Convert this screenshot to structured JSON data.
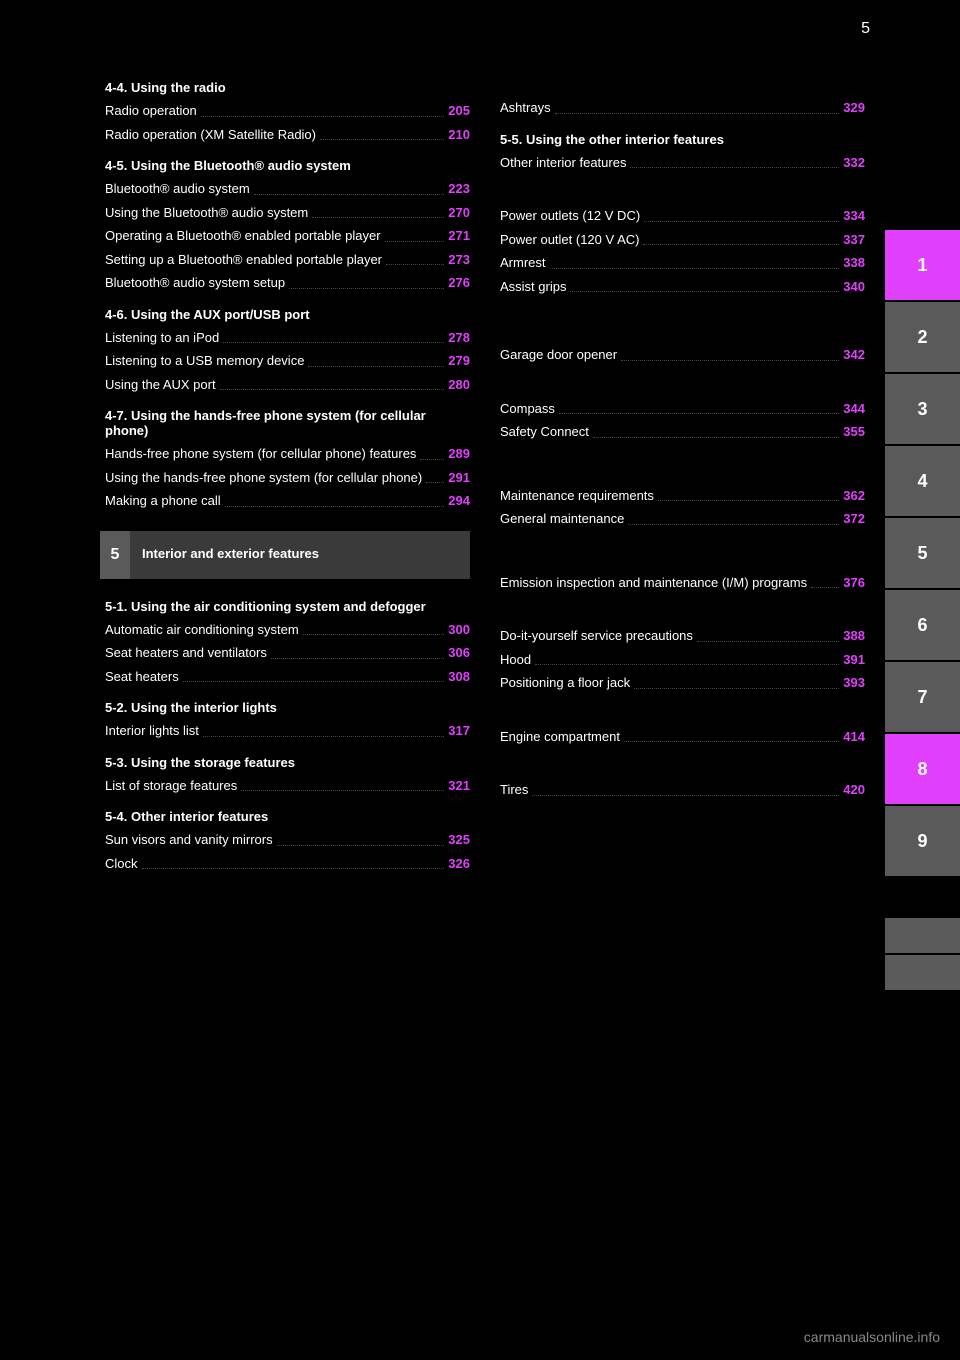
{
  "header": {
    "page_num": "5"
  },
  "col1": {
    "section1": {
      "title": "4-4. Using the radio",
      "items": [
        {
          "text": "Radio operation",
          "page": "205"
        },
        {
          "text": "Radio operation (XM Satellite Radio)",
          "page": "210"
        }
      ]
    },
    "section2": {
      "title": "4-5. Using the Bluetooth® audio system",
      "items": [
        {
          "text": "Bluetooth® audio system",
          "page": "223"
        },
        {
          "text": "Using the Bluetooth® audio system",
          "page": "270"
        },
        {
          "text": "Operating a Bluetooth® enabled portable player",
          "page": "271"
        },
        {
          "text": "Setting up a Bluetooth® enabled portable player",
          "page": "273"
        },
        {
          "text": "Bluetooth® audio system setup",
          "page": "276"
        }
      ]
    },
    "section3": {
      "title": "4-6. Using the AUX port/USB port",
      "items": [
        {
          "text": "Listening to an iPod",
          "page": "278"
        },
        {
          "text": "Listening to a USB memory device",
          "page": "279"
        },
        {
          "text": "Using the AUX port",
          "page": "280"
        }
      ]
    },
    "section4": {
      "title": "4-7. Using the hands-free phone system (for cellular phone)",
      "items": [
        {
          "text": "Hands-free phone system (for cellular phone) features",
          "page": "289"
        },
        {
          "text": "Using the hands-free phone system (for cellular phone)",
          "page": "291"
        },
        {
          "text": "Making a phone call",
          "page": "294"
        }
      ]
    },
    "chapter": {
      "num": "5",
      "title": "Interior and exterior features"
    },
    "section5": {
      "title": "5-1. Using the air conditioning system and defogger",
      "items": [
        {
          "text": "Automatic air conditioning system",
          "page": "300"
        },
        {
          "text": "Seat heaters and ventilators",
          "page": "306"
        },
        {
          "text": "Seat heaters",
          "page": "308"
        }
      ]
    },
    "section6": {
      "title": "5-2. Using the interior lights",
      "items": [
        {
          "text": "Interior lights list",
          "page": "317"
        }
      ]
    },
    "section7": {
      "title": "5-3. Using the storage features",
      "items": [
        {
          "text": "List of storage features",
          "page": "321"
        }
      ]
    },
    "section8": {
      "title": "5-4. Other interior features",
      "items": [
        {
          "text": "Sun visors and vanity mirrors",
          "page": "325"
        },
        {
          "text": "Clock",
          "page": "326"
        }
      ]
    }
  },
  "col2": {
    "items0": [
      {
        "text": "Ashtrays",
        "page": "329"
      }
    ],
    "section1": {
      "title": "5-5. Using the other interior features",
      "items": [
        {
          "text": "Other interior features",
          "page": "332"
        }
      ]
    },
    "items2": [
      {
        "text": "Power outlets (12 V DC)",
        "page": "334"
      },
      {
        "text": "Power outlet (120 V AC)",
        "page": "337"
      },
      {
        "text": "Armrest",
        "page": "338"
      },
      {
        "text": "Assist grips",
        "page": "340"
      }
    ],
    "items3": [
      {
        "text": "Garage door opener",
        "page": "342"
      }
    ],
    "items4": [
      {
        "text": "Compass",
        "page": "344"
      },
      {
        "text": "Safety Connect",
        "page": "355"
      }
    ],
    "items5": [
      {
        "text": "Maintenance requirements",
        "page": "362"
      },
      {
        "text": "General maintenance",
        "page": "372"
      }
    ],
    "items6": [
      {
        "text": "Emission inspection and maintenance (I/M) programs",
        "page": "376"
      }
    ],
    "items7": [
      {
        "text": "Do-it-yourself service precautions",
        "page": "388"
      },
      {
        "text": "Hood",
        "page": "391"
      },
      {
        "text": "Positioning a floor jack",
        "page": "393"
      }
    ],
    "items8": [
      {
        "text": "Engine compartment",
        "page": "414"
      }
    ],
    "items9": [
      {
        "text": "Tires",
        "page": "420"
      }
    ]
  },
  "tabs": [
    {
      "label": "1",
      "active": true
    },
    {
      "label": "2",
      "active": false
    },
    {
      "label": "3",
      "active": false
    },
    {
      "label": "4",
      "active": false
    },
    {
      "label": "5",
      "active": false
    },
    {
      "label": "6",
      "active": false
    },
    {
      "label": "7",
      "active": false
    },
    {
      "label": "8",
      "active": true
    },
    {
      "label": "9",
      "active": false
    }
  ],
  "footer": {
    "text": "carmanualsonline.info"
  }
}
